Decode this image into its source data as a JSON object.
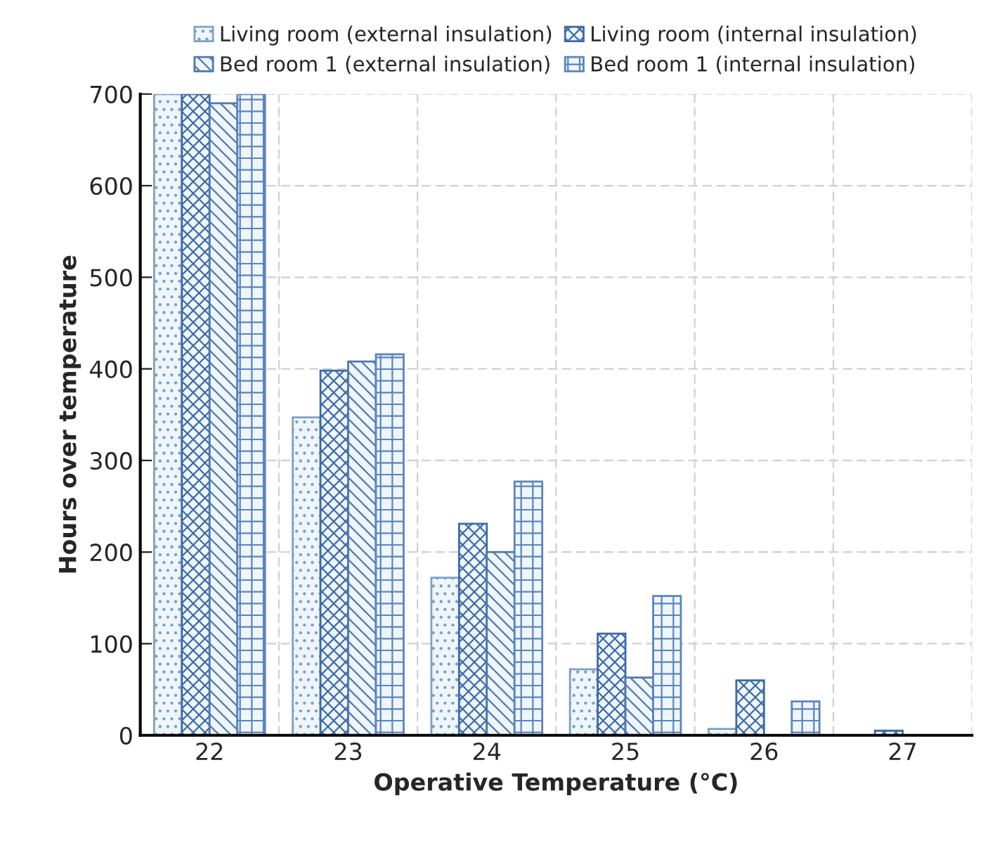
{
  "chart_data": {
    "type": "bar",
    "xlabel": "Operative Temperature (°C)",
    "ylabel": "Hours over temperature",
    "categories": [
      "22",
      "23",
      "24",
      "25",
      "26",
      "27"
    ],
    "series": [
      {
        "name": "Living room (external insulation)",
        "color": "#7f9fc8",
        "values": [
          700,
          347,
          172,
          72,
          7,
          0
        ]
      },
      {
        "name": "Living room (internal insulation)",
        "color": "#3d6aa8",
        "values": [
          700,
          398,
          231,
          111,
          60,
          5
        ]
      },
      {
        "name": "Bed room 1 (external insulation)",
        "color": "#4f77ad",
        "values": [
          690,
          408,
          200,
          63,
          0,
          0
        ]
      },
      {
        "name": "Bed room 1 (internal insulation)",
        "color": "#5b84bb",
        "values": [
          700,
          416,
          277,
          152,
          37,
          0
        ]
      }
    ],
    "ylim": [
      0,
      700
    ],
    "yticks": [
      0,
      100,
      200,
      300,
      400,
      500,
      600,
      700
    ],
    "grid": true,
    "legend": "top"
  }
}
